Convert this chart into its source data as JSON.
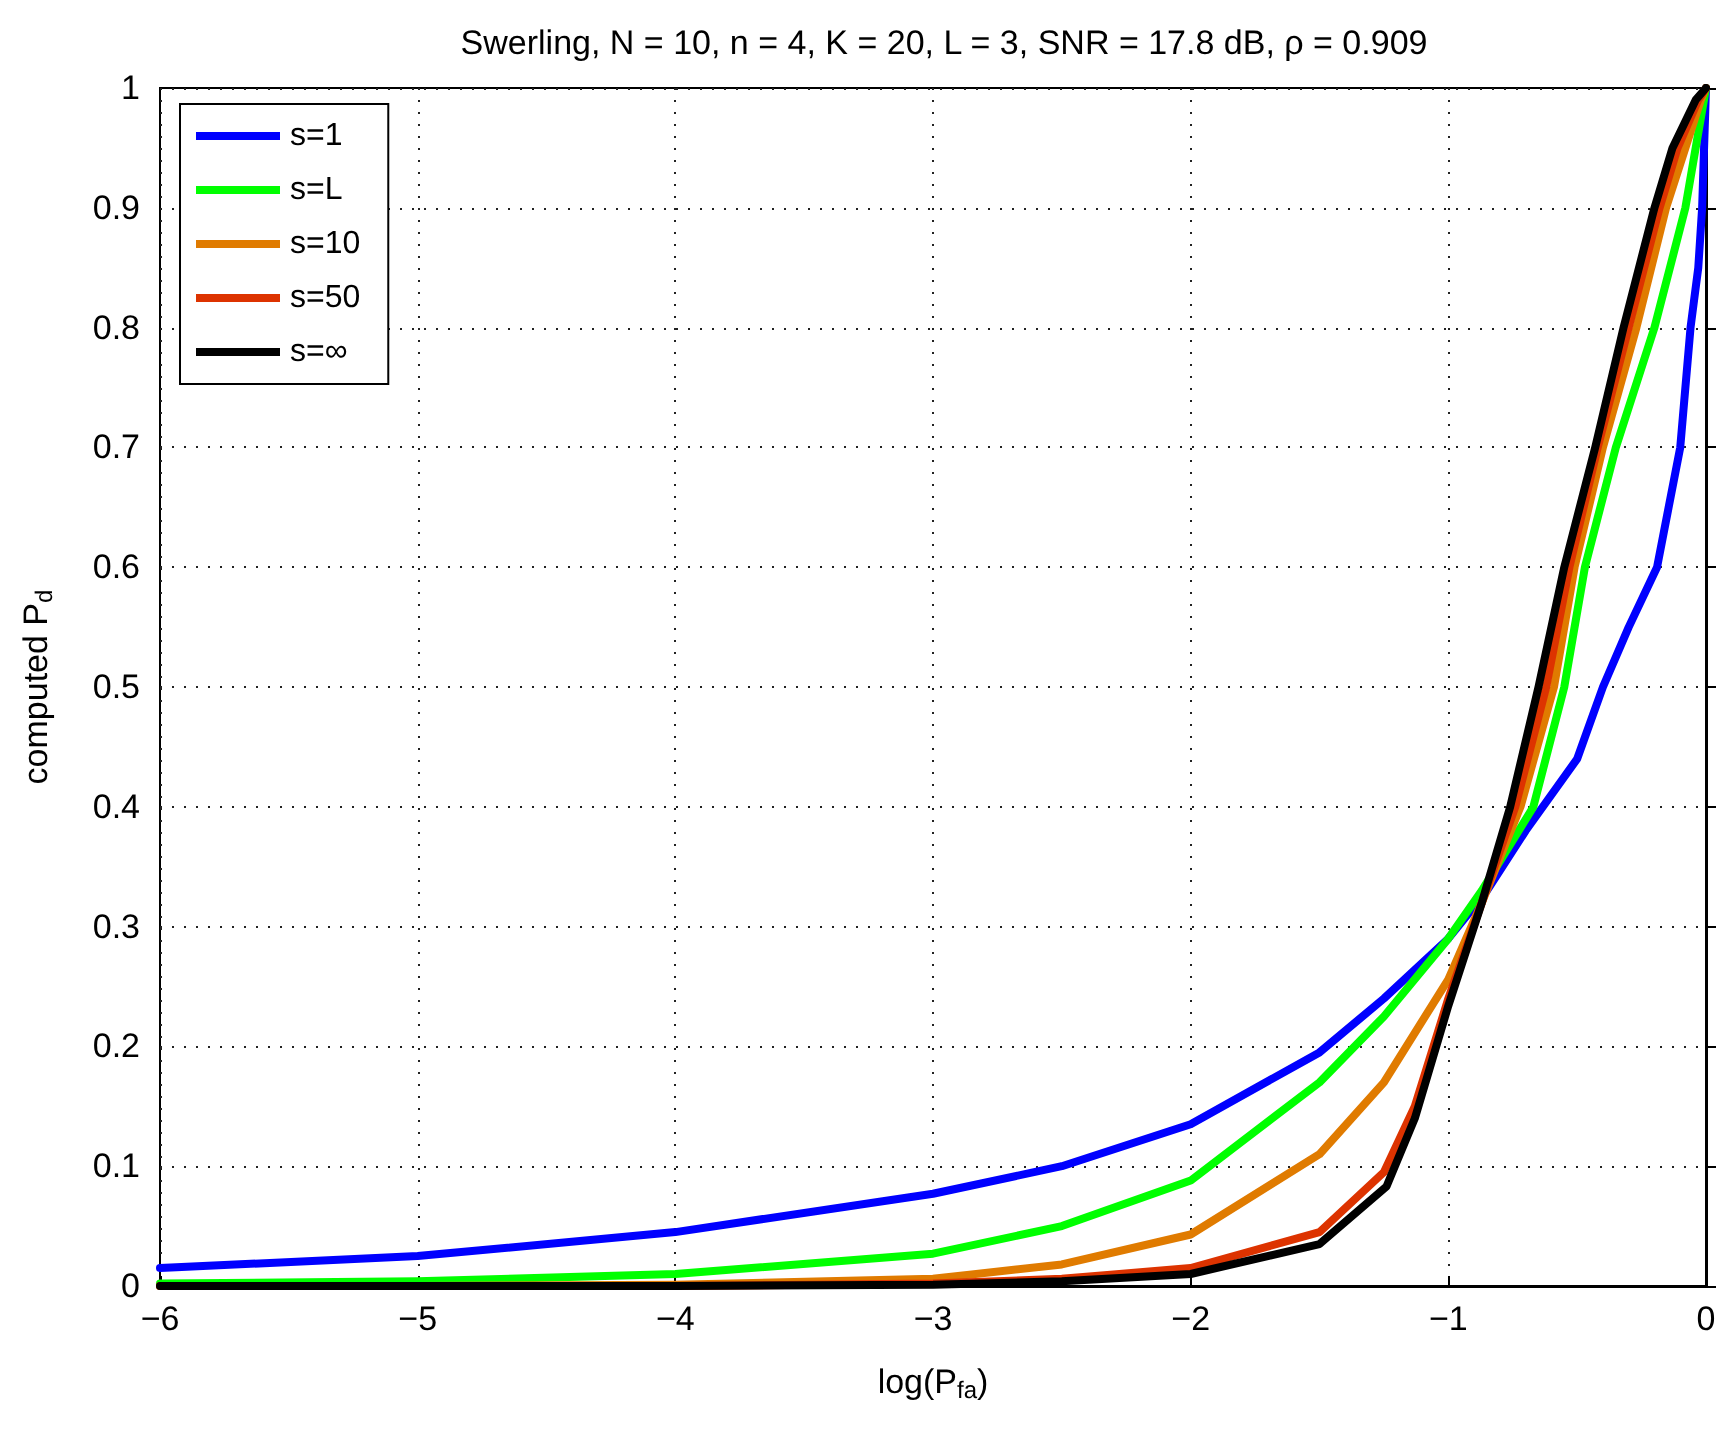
{
  "chart_data": {
    "type": "line",
    "title": "Swerling, N = 10, n = 4, K = 20, L = 3, SNR = 17.8 dB, ρ = 0.909",
    "xlabel": "log(P$_{fa}$)",
    "ylabel": "computed P$_{d}$",
    "xlim": [
      -6,
      0
    ],
    "xticks": [
      -6,
      -5,
      -4,
      -3,
      -2,
      -1,
      0
    ],
    "ylim": [
      0,
      1
    ],
    "yticks": [
      0,
      0.1,
      0.2,
      0.3,
      0.4,
      0.5,
      0.6,
      0.7,
      0.8,
      0.9,
      1
    ],
    "grid": true,
    "legend": "top left",
    "marker": "none",
    "line_style": "solid",
    "series": [
      {
        "name": "s=1",
        "color": "#0000ff",
        "x": [
          -6,
          -5,
          -4,
          -3,
          -2.5,
          -2,
          -1.5,
          -1.25,
          -1,
          -0.85,
          -0.7,
          -0.5,
          -0.4,
          -0.3,
          -0.19,
          -0.1,
          -0.06,
          -0.03,
          -0.015,
          0
        ],
        "values": [
          0.015,
          0.025,
          0.045,
          0.077,
          0.1,
          0.135,
          0.195,
          0.24,
          0.29,
          0.33,
          0.38,
          0.44,
          0.5,
          0.55,
          0.6,
          0.7,
          0.8,
          0.85,
          0.9,
          1
        ]
      },
      {
        "name": "s=L",
        "color": "#00ff00",
        "x": [
          -6,
          -5,
          -4,
          -3,
          -2.5,
          -2,
          -1.5,
          -1.25,
          -1,
          -0.87,
          -0.67,
          -0.55,
          -0.47,
          -0.35,
          -0.2,
          -0.08,
          0
        ],
        "values": [
          0.002,
          0.004,
          0.01,
          0.027,
          0.05,
          0.088,
          0.17,
          0.225,
          0.29,
          0.33,
          0.4,
          0.5,
          0.6,
          0.7,
          0.8,
          0.9,
          1
        ]
      },
      {
        "name": "s=10",
        "color": "#e07b00",
        "x": [
          -6,
          -5,
          -4,
          -3,
          -2.5,
          -2,
          -1.5,
          -1.25,
          -1,
          -0.87,
          -0.72,
          -0.59,
          -0.51,
          -0.4,
          -0.27,
          -0.155,
          -0.08,
          -0.02,
          0
        ],
        "values": [
          0,
          0,
          0.001,
          0.006,
          0.018,
          0.043,
          0.11,
          0.17,
          0.256,
          0.32,
          0.4,
          0.5,
          0.6,
          0.7,
          0.8,
          0.9,
          0.95,
          0.99,
          1
        ]
      },
      {
        "name": "s=50",
        "color": "#dd3300",
        "x": [
          -6,
          -4,
          -3,
          -2.5,
          -2,
          -1.5,
          -1.25,
          -1.13,
          -1,
          -0.87,
          -0.74,
          -0.62,
          -0.53,
          -0.42,
          -0.3,
          -0.18,
          -0.11,
          -0.03,
          0
        ],
        "values": [
          0,
          0,
          0.002,
          0.006,
          0.015,
          0.045,
          0.095,
          0.15,
          0.24,
          0.32,
          0.4,
          0.5,
          0.6,
          0.7,
          0.8,
          0.9,
          0.95,
          0.99,
          1
        ]
      },
      {
        "name": "s=∞",
        "color": "#000000",
        "x": [
          -6,
          -4,
          -3,
          -2.5,
          -2,
          -1.5,
          -1.24,
          -1.13,
          -1,
          -0.87,
          -0.76,
          -0.65,
          -0.55,
          -0.43,
          -0.32,
          -0.2,
          -0.13,
          -0.04,
          0
        ],
        "values": [
          0,
          0,
          0.001,
          0.004,
          0.01,
          0.035,
          0.083,
          0.14,
          0.234,
          0.32,
          0.4,
          0.5,
          0.6,
          0.7,
          0.8,
          0.9,
          0.95,
          0.99,
          1
        ]
      }
    ]
  }
}
